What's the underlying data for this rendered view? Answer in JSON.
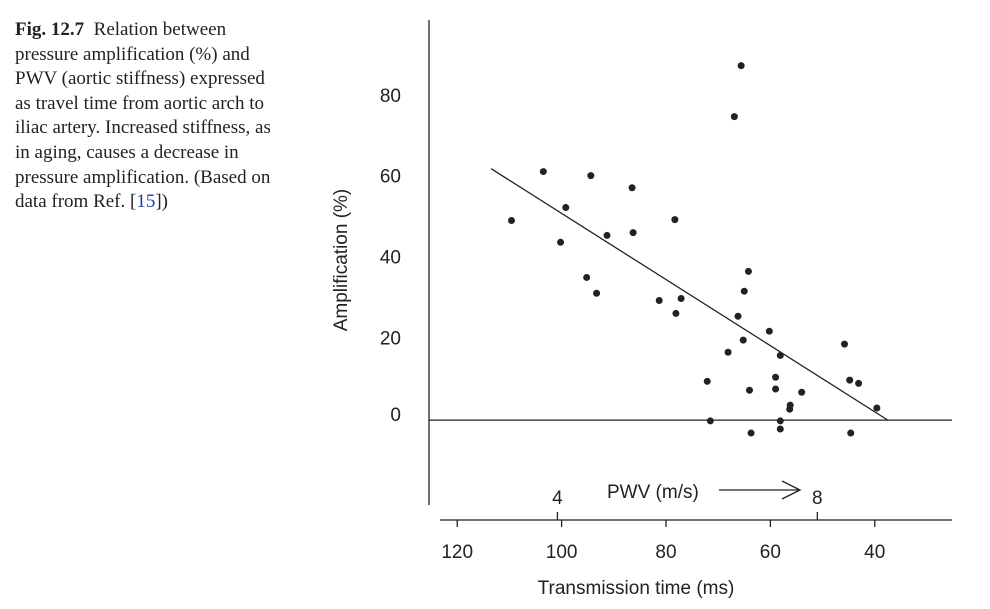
{
  "caption": {
    "label": "Fig. 12.7",
    "text": "Relation between pressure amplification (%) and PWV (aortic stiffness) expressed as travel time from aortic arch to iliac artery. Increased stiffness, as in aging, causes a decrease in pressure amplification. (Based on data from Ref. [",
    "ref": "15",
    "text_after": "])"
  },
  "chart_data": {
    "type": "scatter",
    "xlabel": "Transmission time (ms)",
    "ylabel": "Amplification (%)",
    "pwv_label": "PWV (m/s)",
    "x": [
      109.6,
      103.5,
      99.2,
      100.2,
      94.4,
      95.2,
      93.3,
      91.3,
      86.5,
      86.3,
      78.3,
      77.1,
      78.1,
      81.3,
      72.1,
      71.5,
      68.1,
      66.9,
      65.6,
      66.2,
      65.2,
      65.0,
      64.2,
      64.0,
      63.7,
      60.2,
      59.0,
      59.0,
      58.1,
      58.1,
      58.1,
      56.2,
      56.3,
      54.0,
      45.8,
      44.8,
      43.1,
      44.6,
      39.6
    ],
    "values": [
      49.4,
      61.5,
      52.6,
      44.0,
      60.5,
      35.3,
      31.4,
      45.7,
      57.5,
      46.4,
      49.6,
      30.1,
      26.4,
      29.6,
      9.6,
      -0.2,
      16.8,
      75.1,
      87.7,
      25.7,
      19.8,
      31.9,
      36.8,
      7.4,
      -3.2,
      22.0,
      10.6,
      7.7,
      16.0,
      -0.2,
      -2.2,
      3.7,
      2.7,
      6.9,
      18.8,
      9.9,
      9.1,
      -3.2,
      3.0
    ],
    "color": "#222222",
    "fit_line": {
      "x": [
        113.5,
        37.5
      ],
      "y": [
        62.2,
        0
      ]
    },
    "hline": 0,
    "xlim": [
      123.3,
      25.2
    ],
    "xticks": [
      120,
      100,
      80,
      60,
      40
    ],
    "ylim": [
      -21,
      99
    ],
    "yticks": [
      0,
      20,
      40,
      60,
      80
    ],
    "pwv_ticks": [
      {
        "value": 100.8,
        "label": "4"
      },
      {
        "value": 51,
        "label": "8"
      }
    ]
  }
}
